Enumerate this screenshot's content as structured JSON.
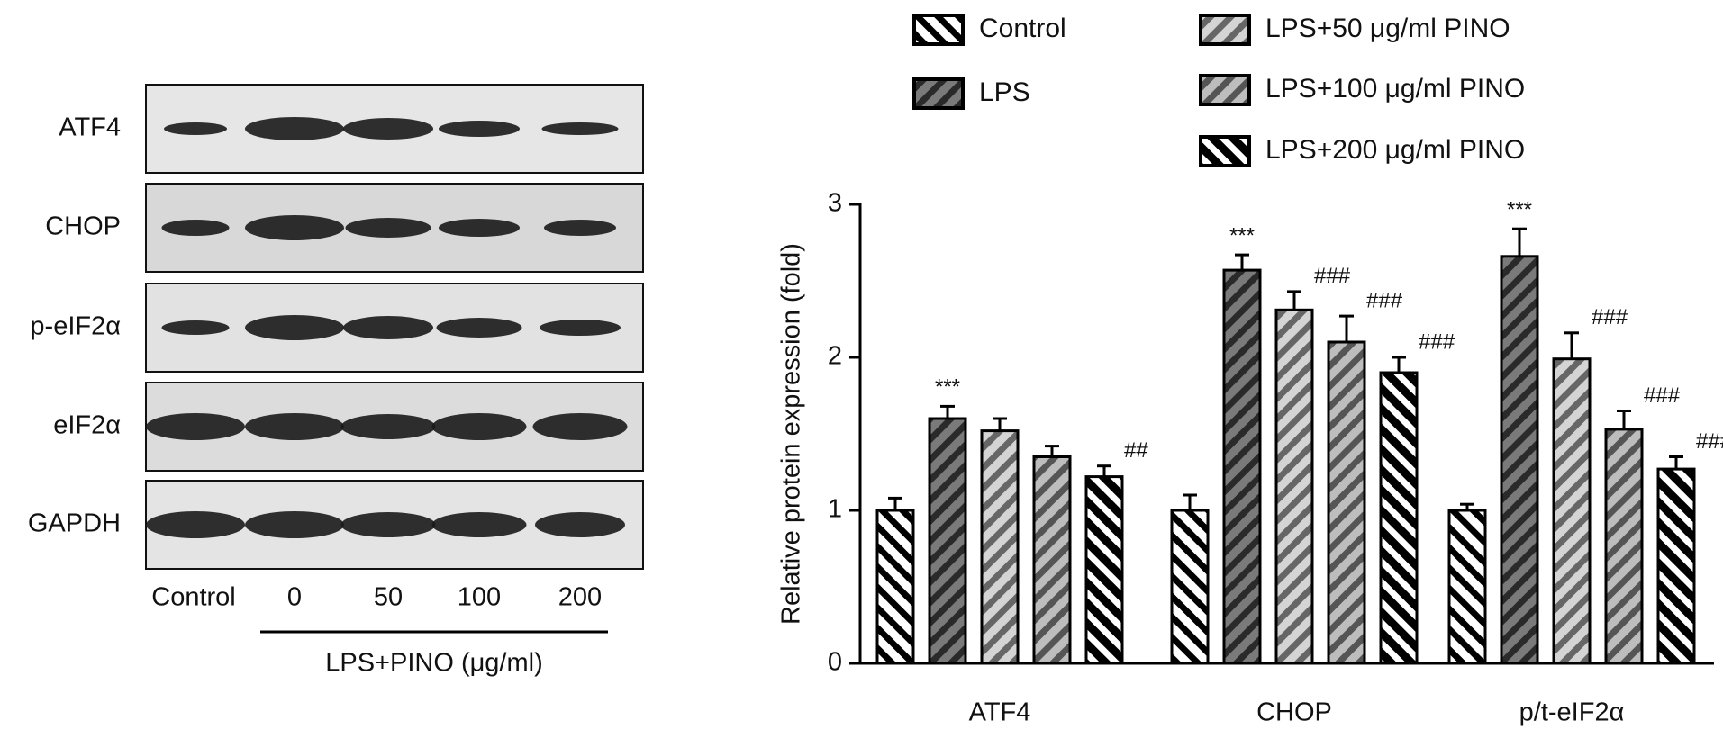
{
  "blot": {
    "row_labels": [
      "ATF4",
      "CHOP",
      "p-eIF2α",
      "eIF2α",
      "GAPDH"
    ],
    "lane_labels": [
      "Control",
      "0",
      "50",
      "100",
      "200"
    ],
    "axis_label": "LPS+PINO (μg/ml)"
  },
  "chart_data": {
    "type": "bar",
    "y_label": "Relative protein expression (fold)",
    "categories": [
      "ATF4",
      "CHOP",
      "p/t-eIF2α"
    ],
    "ylim": [
      0,
      3
    ],
    "yticks": [
      0,
      1,
      2,
      3
    ],
    "grid": false,
    "series": [
      {
        "name": "Control",
        "color": "#ffffff",
        "hatch": "#000000",
        "values": [
          1.0,
          1.0,
          1.0
        ],
        "errors": [
          0.08,
          0.1,
          0.04
        ],
        "annotations": [
          null,
          null,
          null
        ]
      },
      {
        "name": "LPS",
        "color": "#7a7a7a",
        "hatch": "#2a2a2a",
        "values": [
          1.6,
          2.57,
          2.66
        ],
        "errors": [
          0.08,
          0.1,
          0.18
        ],
        "annotations": [
          "***",
          "***",
          "***"
        ]
      },
      {
        "name": "LPS+50 μg/ml PINO",
        "color": "#d4d4d4",
        "hatch": "#666666",
        "values": [
          1.52,
          2.31,
          1.99
        ],
        "errors": [
          0.08,
          0.12,
          0.17
        ],
        "annotations": [
          null,
          "###",
          "###"
        ]
      },
      {
        "name": "LPS+100 μg/ml PINO",
        "color": "#bdbdbd",
        "hatch": "#555555",
        "values": [
          1.35,
          2.1,
          1.53
        ],
        "errors": [
          0.07,
          0.17,
          0.12
        ],
        "annotations": [
          null,
          "###",
          "###"
        ]
      },
      {
        "name": "LPS+200 μg/ml PINO",
        "color": "#000000",
        "hatch": "#ffffff",
        "values": [
          1.22,
          1.9,
          1.27
        ],
        "errors": [
          0.07,
          0.1,
          0.08
        ],
        "annotations": [
          "##",
          "###",
          "###"
        ]
      }
    ]
  }
}
